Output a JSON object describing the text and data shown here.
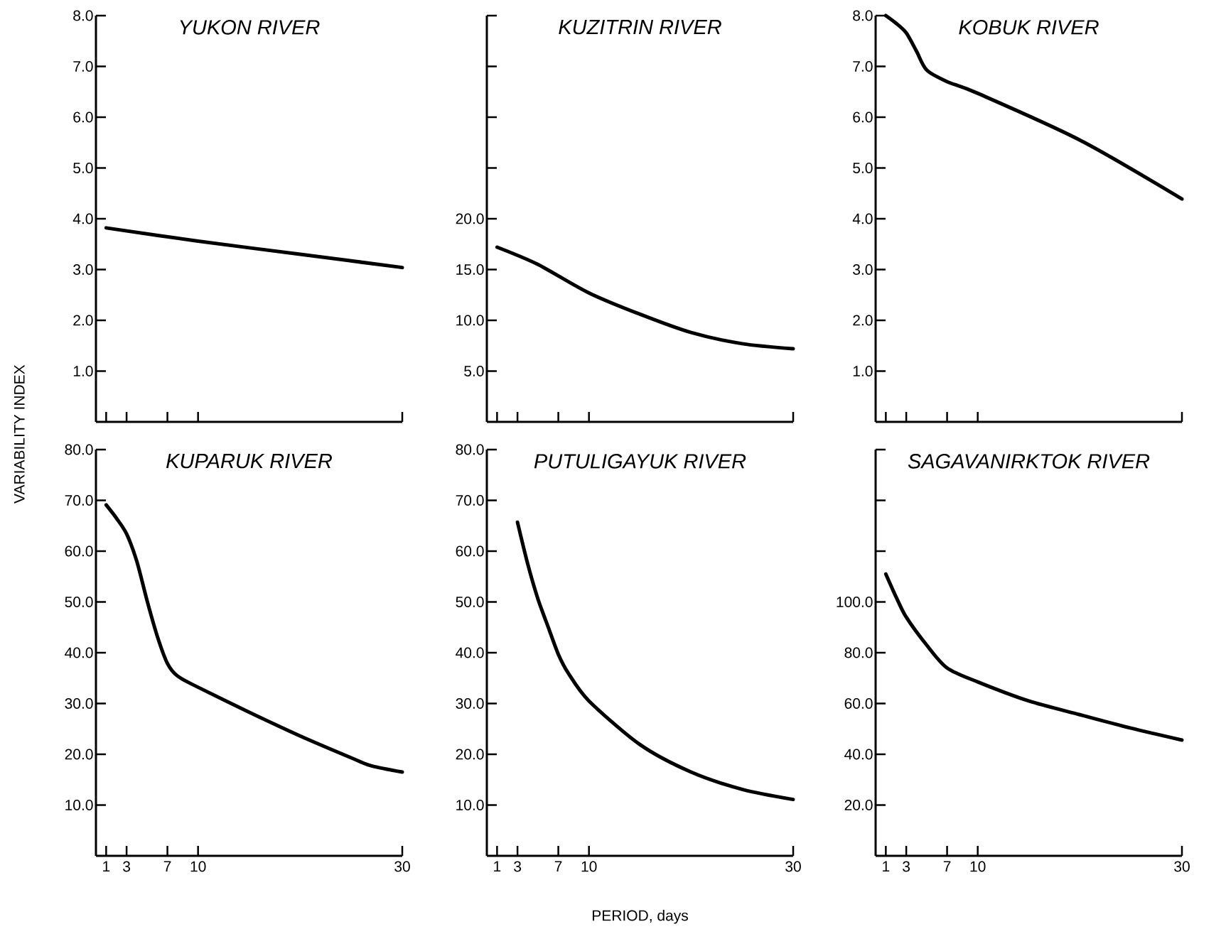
{
  "chart_data": [
    {
      "type": "line",
      "title": "YUKON RIVER",
      "ylabel": "VARIABILITY INDEX",
      "color": "#000000",
      "line_style": "solid",
      "tick_labels": "y",
      "x": [
        1,
        10,
        20,
        30
      ],
      "values": [
        3.82,
        3.56,
        3.3,
        3.04
      ],
      "xlim": [
        0,
        30
      ],
      "ylim": [
        0,
        8
      ],
      "xticks": [
        {
          "value": 1,
          "label": null
        },
        {
          "value": 3,
          "label": null
        },
        {
          "value": 7,
          "label": null
        },
        {
          "value": 10,
          "label": null
        },
        {
          "value": 30,
          "label": null
        }
      ],
      "yticks": [
        {
          "value": 1,
          "label": "1.0"
        },
        {
          "value": 2,
          "label": "2.0"
        },
        {
          "value": 3,
          "label": "3.0"
        },
        {
          "value": 4,
          "label": "4.0"
        },
        {
          "value": 5,
          "label": "5.0"
        },
        {
          "value": 6,
          "label": "6.0"
        },
        {
          "value": 7,
          "label": "7.0"
        },
        {
          "value": 8,
          "label": "8.0"
        }
      ]
    },
    {
      "type": "line",
      "title": "KUZITRIN RIVER",
      "color": "#000000",
      "line_style": "solid",
      "tick_labels": "y",
      "x": [
        1,
        5,
        10,
        15,
        20,
        25,
        30
      ],
      "values": [
        17.2,
        15.5,
        12.7,
        10.6,
        8.8,
        7.7,
        7.2
      ],
      "xlim": [
        0,
        30
      ],
      "ylim": [
        0,
        40
      ],
      "xticks": [
        {
          "value": 1,
          "label": null
        },
        {
          "value": 3,
          "label": null
        },
        {
          "value": 7,
          "label": null
        },
        {
          "value": 10,
          "label": null
        },
        {
          "value": 30,
          "label": null
        }
      ],
      "yticks": [
        {
          "value": 5,
          "label": "5.0"
        },
        {
          "value": 10,
          "label": "10.0"
        },
        {
          "value": 15,
          "label": "15.0"
        },
        {
          "value": 20,
          "label": "20.0"
        },
        {
          "value": 25,
          "label": null
        },
        {
          "value": 30,
          "label": null
        },
        {
          "value": 35,
          "label": null
        },
        {
          "value": 40,
          "label": null
        }
      ]
    },
    {
      "type": "line",
      "title": "KOBUK RIVER",
      "color": "#000000",
      "line_style": "solid",
      "tick_labels": "y",
      "x": [
        1,
        2,
        3,
        4,
        5,
        7,
        10,
        20,
        30
      ],
      "values": [
        8.0,
        7.85,
        7.66,
        7.3,
        6.93,
        6.7,
        6.47,
        5.55,
        4.39
      ],
      "xlim": [
        0,
        30
      ],
      "ylim": [
        0,
        8
      ],
      "xticks": [
        {
          "value": 1,
          "label": null
        },
        {
          "value": 3,
          "label": null
        },
        {
          "value": 7,
          "label": null
        },
        {
          "value": 10,
          "label": null
        },
        {
          "value": 30,
          "label": null
        }
      ],
      "yticks": [
        {
          "value": 1,
          "label": "1.0"
        },
        {
          "value": 2,
          "label": "2.0"
        },
        {
          "value": 3,
          "label": "3.0"
        },
        {
          "value": 4,
          "label": "4.0"
        },
        {
          "value": 5,
          "label": "5.0"
        },
        {
          "value": 6,
          "label": "6.0"
        },
        {
          "value": 7,
          "label": "7.0"
        },
        {
          "value": 8,
          "label": "8.0"
        }
      ]
    },
    {
      "type": "line",
      "title": "KUPARUK RIVER",
      "color": "#000000",
      "line_style": "solid",
      "x": [
        1,
        2,
        3,
        4,
        5,
        6,
        7,
        8,
        10,
        15,
        20,
        25,
        27,
        30
      ],
      "values": [
        69.1,
        66.5,
        63.4,
        58,
        50.3,
        43.3,
        37.9,
        35.4,
        33.2,
        28.3,
        23.6,
        19.3,
        17.7,
        16.5
      ],
      "xlim": [
        0,
        30
      ],
      "ylim": [
        0,
        80
      ],
      "xticks": [
        1,
        3,
        7,
        10,
        30
      ],
      "yticks": [
        {
          "value": 10,
          "label": "10.0"
        },
        {
          "value": 20,
          "label": "20.0"
        },
        {
          "value": 30,
          "label": "30.0"
        },
        {
          "value": 40,
          "label": "40.0"
        },
        {
          "value": 50,
          "label": "50.0"
        },
        {
          "value": 60,
          "label": "60.0"
        },
        {
          "value": 70,
          "label": "70.0"
        },
        {
          "value": 80,
          "label": "80.0"
        }
      ]
    },
    {
      "type": "line",
      "title": "PUTULIGAYUK RIVER",
      "xlabel": "PERIOD, days",
      "color": "#000000",
      "line_style": "solid",
      "x": [
        3,
        4,
        5,
        6,
        7,
        8,
        10,
        15,
        20,
        25,
        30
      ],
      "values": [
        65.7,
        57.5,
        50.6,
        45.1,
        39.7,
        35.9,
        30.5,
        21.9,
        16.5,
        13.1,
        11.1
      ],
      "xlim": [
        0,
        30
      ],
      "ylim": [
        0,
        80
      ],
      "xticks": [
        1,
        3,
        7,
        10,
        30
      ],
      "yticks": [
        {
          "value": 10,
          "label": "10.0"
        },
        {
          "value": 20,
          "label": "20.0"
        },
        {
          "value": 30,
          "label": "30.0"
        },
        {
          "value": 40,
          "label": "40.0"
        },
        {
          "value": 50,
          "label": "50.0"
        },
        {
          "value": 60,
          "label": "60.0"
        },
        {
          "value": 70,
          "label": "70.0"
        },
        {
          "value": 80,
          "label": "80.0"
        }
      ]
    },
    {
      "type": "line",
      "title": "SAGAVANIRKTOK RIVER",
      "color": "#000000",
      "line_style": "solid",
      "x": [
        1,
        2,
        3,
        5,
        7,
        10,
        15,
        20,
        25,
        30
      ],
      "values": [
        111,
        102,
        94,
        83,
        74,
        68.5,
        61,
        55.6,
        50.3,
        45.6
      ],
      "xlim": [
        0,
        30
      ],
      "ylim": [
        0,
        160
      ],
      "xticks": [
        1,
        3,
        7,
        10,
        30
      ],
      "yticks": [
        {
          "value": 20,
          "label": "20.0"
        },
        {
          "value": 40,
          "label": "40.0"
        },
        {
          "value": 60,
          "label": "60.0"
        },
        {
          "value": 80,
          "label": "80.0"
        },
        {
          "value": 100,
          "label": "100.0"
        },
        {
          "value": 120,
          "label": null
        },
        {
          "value": 140,
          "label": null
        },
        {
          "value": 160,
          "label": null
        }
      ]
    }
  ]
}
